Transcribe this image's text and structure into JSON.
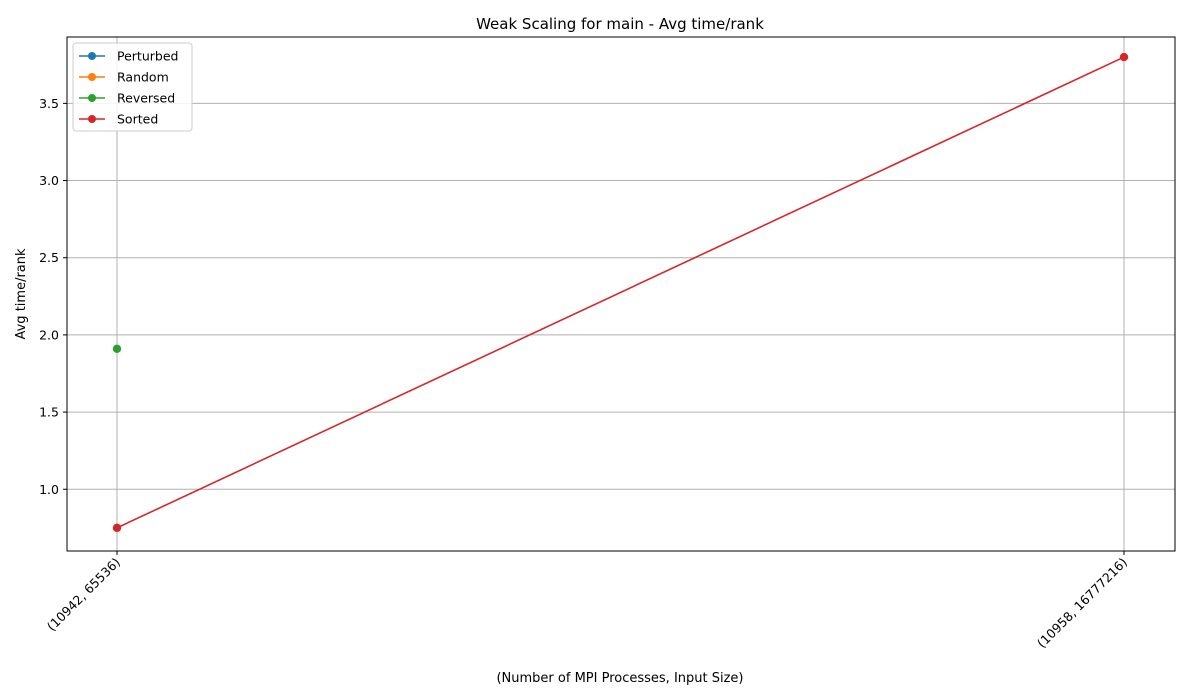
{
  "chart_data": {
    "type": "line",
    "title": "Weak Scaling for main - Avg time/rank",
    "xlabel": "(Number of MPI Processes, Input Size)",
    "ylabel": "Avg time/rank",
    "categories": [
      "(10942, 65536)",
      "(10958, 16777216)"
    ],
    "ylim": [
      0.6,
      3.93
    ],
    "yticks": [
      "1.0",
      "1.5",
      "2.0",
      "2.5",
      "3.0",
      "3.5"
    ],
    "grid": true,
    "legend_position": "top-left",
    "series": [
      {
        "name": "Perturbed",
        "color": "#1f77b4",
        "values": [
          null,
          null
        ]
      },
      {
        "name": "Random",
        "color": "#ff7f0e",
        "values": [
          null,
          null
        ]
      },
      {
        "name": "Reversed",
        "color": "#2ca02c",
        "values": [
          1.91,
          null
        ]
      },
      {
        "name": "Sorted",
        "color": "#d62728",
        "values": [
          0.75,
          3.8
        ]
      }
    ]
  }
}
